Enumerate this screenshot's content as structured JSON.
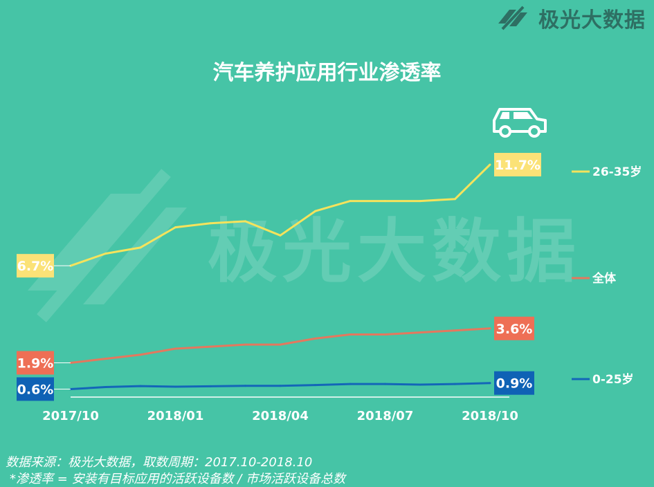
{
  "brand": {
    "name": "极光大数据"
  },
  "watermark": "极光大数据",
  "icons": {
    "car": "car-icon",
    "logo": "jiguang-logo-icon"
  },
  "chart_data": {
    "type": "line",
    "title": "汽车养护应用行业渗透率",
    "xlabel": "",
    "ylabel": "",
    "x_ticks": [
      "2017/10",
      "2018/01",
      "2018/04",
      "2018/07",
      "2018/10"
    ],
    "x_tick_index": [
      0,
      3,
      6,
      9,
      12
    ],
    "ylim": [
      0,
      13
    ],
    "grid": false,
    "legend_position": "right",
    "series": [
      {
        "name": "26-35岁",
        "color": "#f5e35c",
        "label_bg": "#fbe277",
        "label_color": "#ffffff",
        "values": [
          6.7,
          7.3,
          7.6,
          8.6,
          8.8,
          8.9,
          8.2,
          9.4,
          9.9,
          9.9,
          9.9,
          10.0,
          11.7
        ],
        "start_label": "6.7%",
        "end_label": "11.7%"
      },
      {
        "name": "全体",
        "color": "#e4785e",
        "label_bg": "#ee6f55",
        "label_color": "#ffffff",
        "values": [
          1.9,
          2.1,
          2.3,
          2.6,
          2.7,
          2.8,
          2.8,
          3.1,
          3.3,
          3.3,
          3.4,
          3.5,
          3.6
        ],
        "start_label": "1.9%",
        "end_label": "3.6%"
      },
      {
        "name": "0-25岁",
        "color": "#1366b8",
        "label_bg": "#0f62b5",
        "label_color": "#ffffff",
        "values": [
          0.6,
          0.7,
          0.75,
          0.72,
          0.74,
          0.76,
          0.76,
          0.8,
          0.85,
          0.85,
          0.82,
          0.85,
          0.9
        ],
        "start_label": "0.6%",
        "end_label": "0.9%"
      }
    ]
  },
  "footer": {
    "source": "数据来源：极光大数据，取数周期：2017.10-2018.10",
    "note": "*渗透率 = 安装有目标应用的活跃设备数 / 市场活跃设备总数"
  }
}
